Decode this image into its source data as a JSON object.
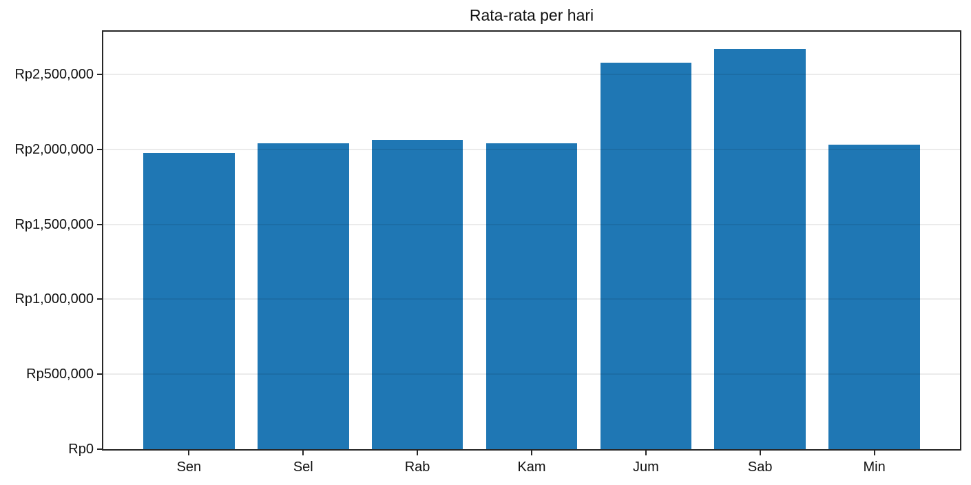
{
  "chart_data": {
    "type": "bar",
    "title": "Rata-rata per hari",
    "categories": [
      "Sen",
      "Sel",
      "Rab",
      "Kam",
      "Jum",
      "Sab",
      "Min"
    ],
    "values": [
      1975000,
      2040000,
      2065000,
      2042000,
      2580000,
      2670000,
      2030000
    ],
    "xlabel": "",
    "ylabel": "",
    "ylim": [
      0,
      2785000
    ],
    "xlim": [
      -0.75,
      6.75
    ],
    "bar_width_fraction": 0.8,
    "y_ticks": [
      {
        "value": 0,
        "label": "Rp0"
      },
      {
        "value": 500000,
        "label": "Rp500,000"
      },
      {
        "value": 1000000,
        "label": "Rp1,000,000"
      },
      {
        "value": 1500000,
        "label": "Rp1,500,000"
      },
      {
        "value": 2000000,
        "label": "Rp2,000,000"
      },
      {
        "value": 2500000,
        "label": "Rp2,500,000"
      }
    ],
    "grid": "horizontal",
    "legend": "none",
    "colors": {
      "bar": "#1f77b4",
      "spine": "#262626",
      "grid": "rgba(0,0,0,0.08)",
      "text": "#111111",
      "background": "#ffffff"
    }
  }
}
